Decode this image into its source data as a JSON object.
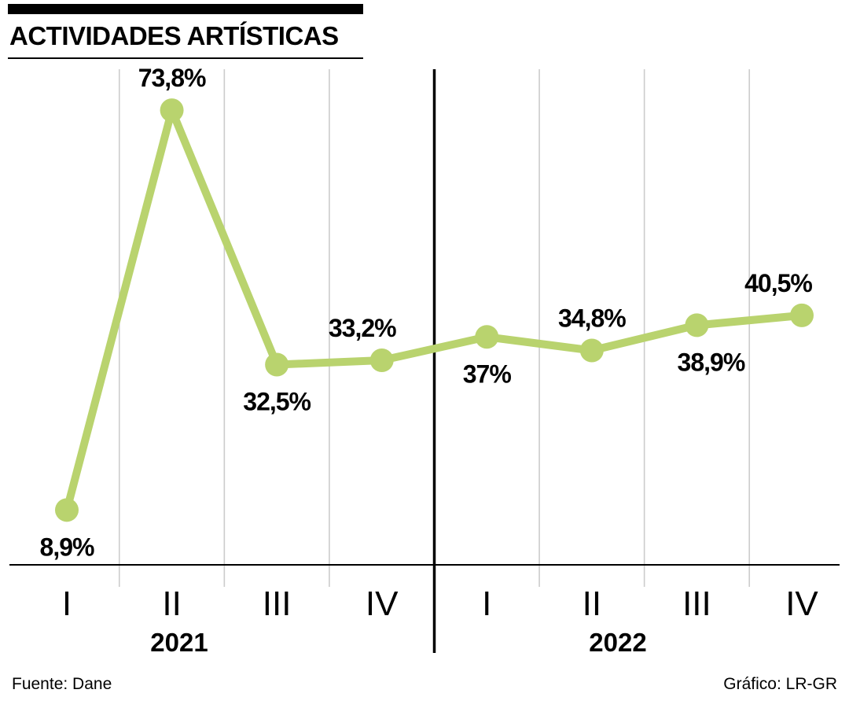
{
  "header": {
    "title": "ACTIVIDADES ARTÍSTICAS"
  },
  "footer": {
    "source": "Fuente: Dane",
    "credit": "Gráfico: LR-GR"
  },
  "chart_data": {
    "type": "line",
    "title": "ACTIVIDADES ARTÍSTICAS",
    "categories": [
      "I",
      "II",
      "III",
      "IV",
      "I",
      "II",
      "III",
      "IV"
    ],
    "groups": [
      {
        "label": "2021",
        "x": 228
      },
      {
        "label": "2022",
        "x": 786
      }
    ],
    "series": [
      {
        "name": "Actividades artísticas",
        "values": [
          8.9,
          73.8,
          32.5,
          33.2,
          37,
          34.8,
          38.9,
          40.5
        ]
      }
    ],
    "point_labels": [
      "8,9%",
      "73,8%",
      "32,5%",
      "33,2%",
      "37%",
      "34,8%",
      "38,9%",
      "40,5%"
    ],
    "label_positions": [
      "below",
      "above",
      "below",
      "above",
      "below",
      "above",
      "below",
      "above"
    ],
    "label_dx": [
      0,
      0,
      0,
      -25,
      0,
      0,
      18,
      -30
    ],
    "line_color": "#b9d36e",
    "grid_color": "#cccccc",
    "separator_color": "#000000",
    "axis_color": "#000000",
    "ylim": [
      0,
      80
    ],
    "grid": true,
    "legend": false
  }
}
